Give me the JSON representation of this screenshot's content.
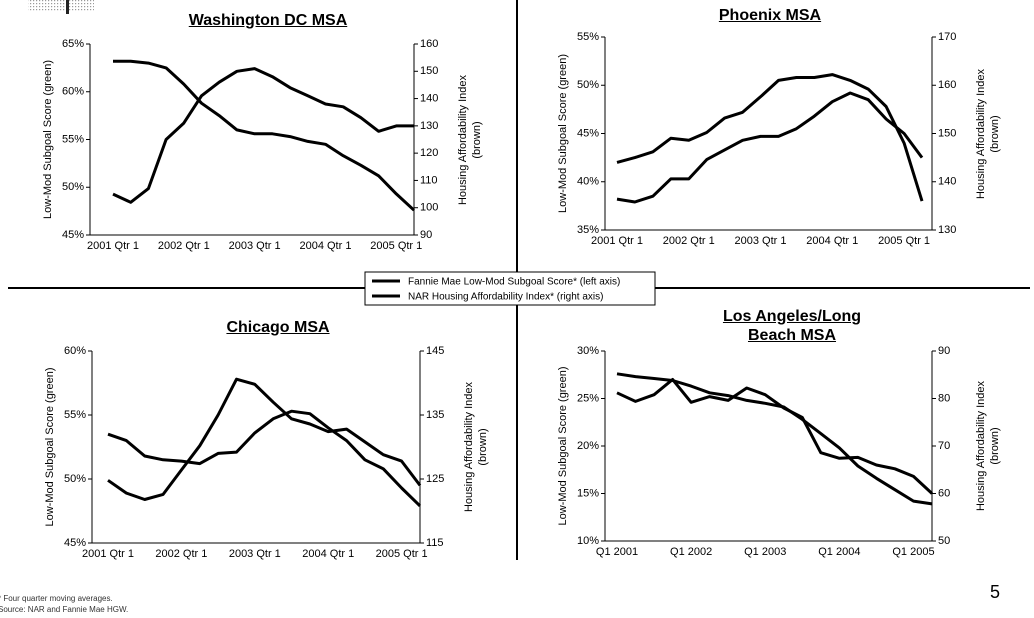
{
  "chart_data": [
    {
      "type": "line",
      "title": "Washington DC MSA",
      "y_label": "Low-Mod Subgoal Score (green)",
      "y2_label": "Housing Affordability Index (brown)",
      "categories": [
        "2001 Qtr 1",
        null,
        null,
        null,
        "2002 Qtr 1",
        null,
        null,
        null,
        "2003 Qtr 1",
        null,
        null,
        null,
        "2004 Qtr 1",
        null,
        null,
        null,
        "2005 Qtr 1",
        null
      ],
      "ylim": [
        45,
        65
      ],
      "yticks": [
        {
          "value": 45,
          "label": "45%"
        },
        {
          "value": 50,
          "label": "50%"
        },
        {
          "value": 55,
          "label": "55%"
        },
        {
          "value": 60,
          "label": "60%"
        },
        {
          "value": 65,
          "label": "65%"
        }
      ],
      "y2lim": [
        90,
        160
      ],
      "y2ticks": [
        90,
        100,
        110,
        120,
        130,
        140,
        150,
        160
      ],
      "series": [
        {
          "name": "Fannie Mae Low-Mod Subgoal Score* (left axis)",
          "color": "#000000",
          "values": [
            63.2,
            63.2,
            63.0,
            62.5,
            60.8,
            58.8,
            57.5,
            56.0,
            55.6,
            55.6,
            55.3,
            54.8,
            54.5,
            53.3,
            52.3,
            51.2,
            49.3,
            47.6
          ]
        },
        {
          "name": "NAR Housing Affordability Index* (right axis)",
          "color": "#000000",
          "axis": "y2",
          "values": [
            105,
            102,
            107,
            125,
            131,
            141,
            146,
            150,
            151,
            148,
            144,
            141,
            138,
            137,
            133,
            128,
            130,
            130
          ]
        }
      ]
    },
    {
      "type": "line",
      "title": "Phoenix MSA",
      "y_label": "Low-Mod Subgoal Score (green)",
      "y2_label": "Housing Affordability Index (brown)",
      "categories": [
        "2001 Qtr 1",
        null,
        null,
        null,
        "2002 Qtr 1",
        null,
        null,
        null,
        "2003 Qtr 1",
        null,
        null,
        null,
        "2004 Qtr 1",
        null,
        null,
        null,
        "2005 Qtr 1",
        null
      ],
      "ylim": [
        35,
        55
      ],
      "yticks": [
        {
          "value": 35,
          "label": "35%"
        },
        {
          "value": 40,
          "label": "40%"
        },
        {
          "value": 45,
          "label": "45%"
        },
        {
          "value": 50,
          "label": "50%"
        },
        {
          "value": 55,
          "label": "55%"
        }
      ],
      "y2lim": [
        130,
        170
      ],
      "y2ticks": [
        130,
        140,
        150,
        160,
        170
      ],
      "series": [
        {
          "color": "#000000",
          "values": [
            42,
            42.5,
            43.1,
            44.5,
            44.3,
            45.1,
            46.6,
            47.2,
            48.8,
            50.5,
            50.8,
            50.8,
            51.1,
            50.5,
            49.6,
            47.8,
            44,
            38
          ]
        },
        {
          "color": "#000000",
          "axis": "y2",
          "values": [
            136.4,
            135.8,
            137,
            140.6,
            140.6,
            144.6,
            146.6,
            148.6,
            149.4,
            149.4,
            151,
            153.6,
            156.6,
            158.4,
            157,
            153,
            150,
            145
          ]
        }
      ]
    },
    {
      "type": "line",
      "title": "Chicago MSA",
      "y_label": "Low-Mod Subgoal Score (green)",
      "y2_label": "Housing Affordability Index (brown)",
      "categories": [
        "2001 Qtr 1",
        null,
        null,
        null,
        "2002 Qtr 1",
        null,
        null,
        null,
        "2003 Qtr 1",
        null,
        null,
        null,
        "2004 Qtr 1",
        null,
        null,
        null,
        "2005 Qtr 1",
        null
      ],
      "ylim": [
        45,
        60
      ],
      "yticks": [
        {
          "value": 45,
          "label": "45%"
        },
        {
          "value": 50,
          "label": "50%"
        },
        {
          "value": 55,
          "label": "55%"
        },
        {
          "value": 60,
          "label": "60%"
        }
      ],
      "y2lim": [
        115,
        145
      ],
      "y2ticks": [
        115,
        125,
        135,
        145
      ],
      "series": [
        {
          "color": "#000000",
          "values": [
            53.5,
            53,
            51.8,
            51.5,
            51.4,
            51.2,
            52,
            52.1,
            53.6,
            54.7,
            55.3,
            55.1,
            54,
            53,
            51.5,
            50.8,
            49.3,
            47.9
          ]
        },
        {
          "color": "#000000",
          "axis": "y2",
          "values": [
            124.8,
            122.8,
            121.8,
            122.6,
            126.4,
            130.2,
            135,
            140.6,
            139.8,
            137,
            134.4,
            133.6,
            132.4,
            132.8,
            130.8,
            128.8,
            127.8,
            124
          ]
        }
      ]
    },
    {
      "type": "line",
      "title": "Los Angeles/Long Beach MSA",
      "y_label": "Low-Mod Subgoal Score (green)",
      "y2_label": "Housing Affordability Index (brown)",
      "categories": [
        "Q1 2001",
        null,
        null,
        null,
        "Q1 2002",
        null,
        null,
        null,
        "Q1 2003",
        null,
        null,
        null,
        "Q1 2004",
        null,
        null,
        null,
        "Q1 2005",
        null
      ],
      "ylim": [
        10,
        30
      ],
      "yticks": [
        {
          "value": 10,
          "label": "10%"
        },
        {
          "value": 15,
          "label": "15%"
        },
        {
          "value": 20,
          "label": "20%"
        },
        {
          "value": 25,
          "label": "25%"
        },
        {
          "value": 30,
          "label": "30%"
        }
      ],
      "y2lim": [
        50,
        90
      ],
      "y2ticks": [
        50,
        60,
        70,
        80,
        90
      ],
      "series": [
        {
          "color": "#000000",
          "values": [
            27.6,
            27.3,
            27.1,
            26.9,
            26.3,
            25.6,
            25.3,
            24.8,
            24.5,
            24.1,
            22.8,
            21.3,
            19.8,
            17.9,
            16.6,
            15.4,
            14.2,
            13.9
          ]
        },
        {
          "color": "#000000",
          "axis": "y2",
          "values": [
            81.2,
            79.4,
            80.8,
            84,
            79.2,
            80.4,
            79.6,
            82.2,
            80.8,
            78,
            76,
            68.6,
            67.4,
            67.6,
            66,
            65.2,
            63.6,
            60
          ]
        }
      ]
    }
  ],
  "footnotes": [
    "* Four quarter moving averages.",
    "Source: NAR and Fannie Mae HGW."
  ],
  "page_number": "5"
}
